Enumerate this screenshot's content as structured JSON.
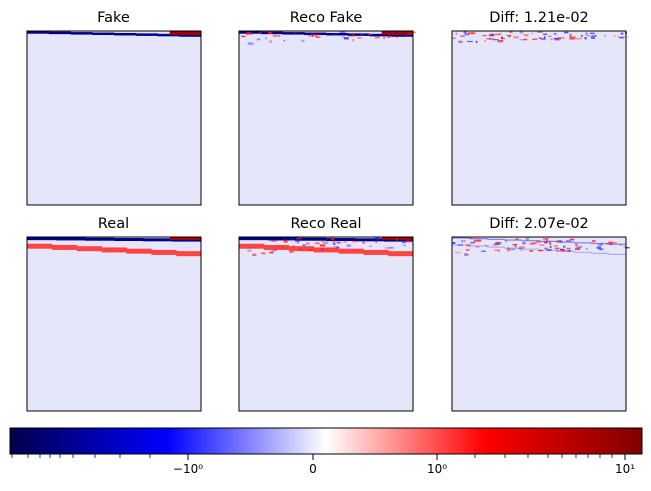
{
  "chart_data": {
    "type": "heatmap",
    "panels": [
      {
        "title": "Fake",
        "kind": "fake"
      },
      {
        "title": "Reco Fake",
        "kind": "reco_fake"
      },
      {
        "title": "Diff: 1.21e-02",
        "kind": "diff_fake"
      },
      {
        "title": "Real",
        "kind": "real"
      },
      {
        "title": "Reco Real",
        "kind": "reco_real"
      },
      {
        "title": "Diff: 2.07e-02",
        "kind": "diff_real"
      }
    ],
    "colorbar": {
      "colormap": "seismic",
      "scale": "symlog",
      "tick_labels": [
        "−10⁰",
        "0",
        "10⁰",
        "10¹"
      ]
    },
    "colors": {
      "background": "#e6e6fa",
      "red": "#ff4444",
      "dark_blue": "#00008b",
      "dark_red": "#a00000"
    }
  }
}
